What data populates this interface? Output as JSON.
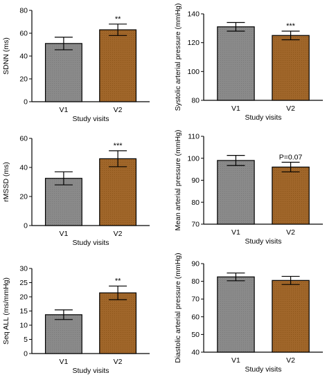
{
  "chart_data": [
    {
      "type": "bar",
      "categories": [
        "V1",
        "V2"
      ],
      "values": [
        51,
        63
      ],
      "error": [
        5.5,
        5
      ],
      "annotations": [
        "",
        "**"
      ],
      "xlabel": "Study visits",
      "ylabel": "SDNN (ms)",
      "ylim": [
        0,
        80
      ],
      "yticks": [
        0,
        20,
        40,
        60,
        80
      ],
      "colors": [
        "#808080",
        "#9a5f1c"
      ]
    },
    {
      "type": "bar",
      "categories": [
        "V1",
        "V2"
      ],
      "values": [
        131,
        125
      ],
      "error": [
        3,
        3
      ],
      "annotations": [
        "",
        "***"
      ],
      "xlabel": "Study visits",
      "ylabel": "Systolic arterial pressure (mmHg)",
      "ylim": [
        80,
        140
      ],
      "yticks": [
        80,
        100,
        120,
        140
      ],
      "colors": [
        "#808080",
        "#9a5f1c"
      ]
    },
    {
      "type": "bar",
      "categories": [
        "V1",
        "V2"
      ],
      "values": [
        32.5,
        46
      ],
      "error": [
        4.5,
        5.5
      ],
      "annotations": [
        "",
        "***"
      ],
      "xlabel": "Study visits",
      "ylabel": "rMSSD (ms)",
      "ylim": [
        0,
        60
      ],
      "yticks": [
        0,
        20,
        40,
        60
      ],
      "colors": [
        "#808080",
        "#9a5f1c"
      ]
    },
    {
      "type": "bar",
      "categories": [
        "V1",
        "V2"
      ],
      "values": [
        99,
        96
      ],
      "error": [
        2.3,
        2.2
      ],
      "annotations": [
        "",
        "P=0.07"
      ],
      "xlabel": "Study visits",
      "ylabel": "Mean arterial pressure (mmHg)",
      "ylim": [
        70,
        110
      ],
      "yticks": [
        70,
        80,
        90,
        100,
        110
      ],
      "colors": [
        "#808080",
        "#9a5f1c"
      ]
    },
    {
      "type": "bar",
      "categories": [
        "V1",
        "V2"
      ],
      "values": [
        13.7,
        21.4
      ],
      "error": [
        1.7,
        2.4
      ],
      "annotations": [
        "",
        "**"
      ],
      "xlabel": "Study visits",
      "ylabel": "Seq ALL (ms/mmHg)",
      "ylim": [
        0,
        30
      ],
      "yticks": [
        0,
        5,
        10,
        15,
        20,
        25,
        30
      ],
      "colors": [
        "#808080",
        "#9a5f1c"
      ]
    },
    {
      "type": "bar",
      "categories": [
        "V1",
        "V2"
      ],
      "values": [
        82.5,
        80.5
      ],
      "error": [
        2.2,
        2.3
      ],
      "annotations": [
        "",
        ""
      ],
      "xlabel": "Study visits",
      "ylabel": "Diastolic arterial pressure (mmHg)",
      "ylim": [
        40,
        90
      ],
      "yticks": [
        40,
        50,
        60,
        70,
        80,
        90
      ],
      "colors": [
        "#808080",
        "#9a5f1c"
      ]
    }
  ]
}
